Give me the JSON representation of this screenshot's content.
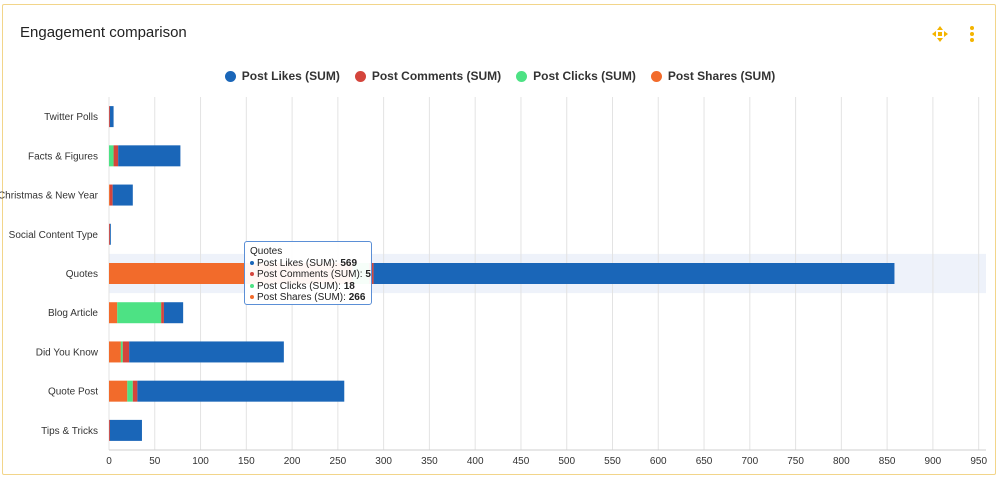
{
  "card": {
    "title": "Engagement comparison",
    "accent_color": "#f4b400"
  },
  "icons": {
    "expand": "move-arrows-icon",
    "menu": "more-vertical-icon"
  },
  "chart_data": {
    "type": "bar",
    "orientation": "horizontal",
    "stacked": true,
    "categories": [
      "Twitter Polls",
      "Facts & Figures",
      "Christmas & New Year",
      "Social Content Type",
      "Quotes",
      "Blog Article",
      "Did You Know",
      "Quote Post",
      "Tips & Tricks"
    ],
    "series": [
      {
        "name": "Post Shares (SUM)",
        "color": "#f26b2b",
        "values": [
          0,
          0,
          1,
          0,
          266,
          9,
          13,
          20,
          0
        ]
      },
      {
        "name": "Post Clicks (SUM)",
        "color": "#4de284",
        "values": [
          0,
          5,
          0,
          0,
          18,
          48,
          2,
          6,
          0
        ]
      },
      {
        "name": "Post Comments (SUM)",
        "color": "#d4453c",
        "values": [
          1,
          5,
          3,
          1,
          5,
          3,
          7,
          5,
          1
        ]
      },
      {
        "name": "Post Likes (SUM)",
        "color": "#1a66b8",
        "values": [
          4,
          68,
          22,
          1,
          569,
          21,
          169,
          226,
          35
        ]
      }
    ],
    "legend_order": [
      "Post Likes (SUM)",
      "Post Comments (SUM)",
      "Post Clicks (SUM)",
      "Post Shares (SUM)"
    ],
    "xlim": [
      0,
      950
    ],
    "xticks": [
      0,
      50,
      100,
      150,
      200,
      250,
      300,
      350,
      400,
      450,
      500,
      550,
      600,
      650,
      700,
      750,
      800,
      850,
      900,
      950
    ],
    "grid": true,
    "legend_position": "top-center",
    "highlighted_category": "Quotes"
  },
  "tooltip": {
    "title": "Quotes",
    "rows": [
      {
        "label": "Post Likes (SUM)",
        "value": "569",
        "color": "#1a66b8"
      },
      {
        "label": "Post Comments (SUM)",
        "value": "5",
        "color": "#d4453c"
      },
      {
        "label": "Post Clicks (SUM)",
        "value": "18",
        "color": "#4de284"
      },
      {
        "label": "Post Shares (SUM)",
        "value": "266",
        "color": "#f26b2b"
      }
    ]
  }
}
